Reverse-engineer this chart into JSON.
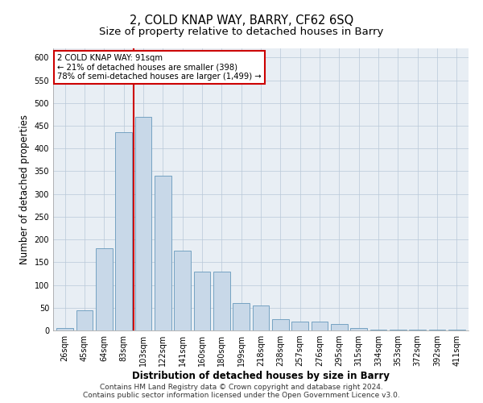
{
  "title": "2, COLD KNAP WAY, BARRY, CF62 6SQ",
  "subtitle": "Size of property relative to detached houses in Barry",
  "xlabel": "Distribution of detached houses by size in Barry",
  "ylabel": "Number of detached properties",
  "categories": [
    "26sqm",
    "45sqm",
    "64sqm",
    "83sqm",
    "103sqm",
    "122sqm",
    "141sqm",
    "160sqm",
    "180sqm",
    "199sqm",
    "218sqm",
    "238sqm",
    "257sqm",
    "276sqm",
    "295sqm",
    "315sqm",
    "334sqm",
    "353sqm",
    "372sqm",
    "392sqm",
    "411sqm"
  ],
  "values": [
    5,
    45,
    180,
    435,
    470,
    340,
    175,
    130,
    130,
    60,
    55,
    25,
    20,
    20,
    15,
    5,
    2,
    2,
    2,
    2,
    2
  ],
  "bar_color": "#c8d8e8",
  "bar_edge_color": "#6699bb",
  "vline_color": "#cc0000",
  "annotation_box_text": "2 COLD KNAP WAY: 91sqm\n← 21% of detached houses are smaller (398)\n78% of semi-detached houses are larger (1,499) →",
  "annotation_box_color": "#cc0000",
  "ylim": [
    0,
    620
  ],
  "yticks": [
    0,
    50,
    100,
    150,
    200,
    250,
    300,
    350,
    400,
    450,
    500,
    550,
    600
  ],
  "footer": "Contains HM Land Registry data © Crown copyright and database right 2024.\nContains public sector information licensed under the Open Government Licence v3.0.",
  "background_color": "#e8eef4",
  "grid_color": "#b8c8d8",
  "title_fontsize": 10.5,
  "subtitle_fontsize": 9.5,
  "axis_label_fontsize": 8.5,
  "tick_fontsize": 7,
  "footer_fontsize": 6.5
}
